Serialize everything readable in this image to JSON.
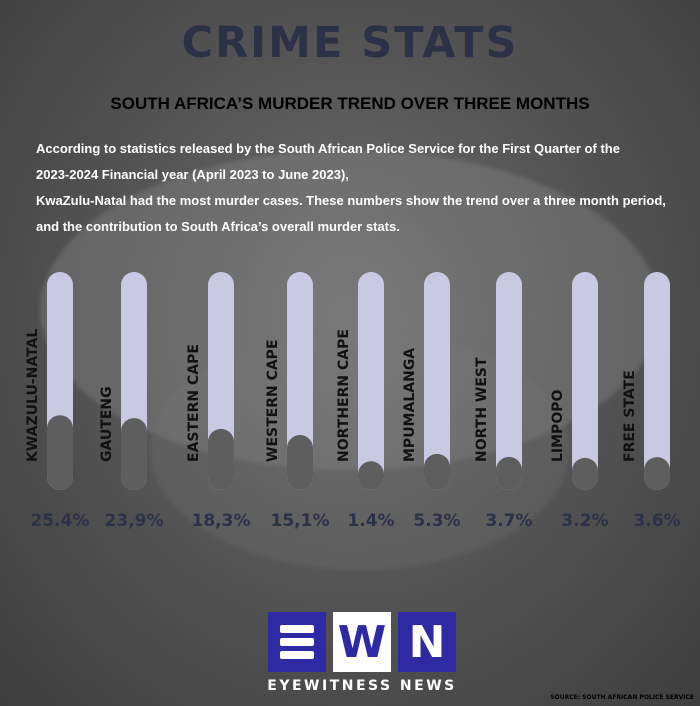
{
  "header": {
    "title": "CRIME STATS",
    "subtitle": "SOUTH AFRICA’S MURDER TREND OVER THREE MONTHS"
  },
  "intro": [
    "According to statistics released by the South African Police Service for the First  Quarter of the",
    "2023-2024 Financial year (April 2023 to June 2023),",
    "KwaZulu-Natal had the most murder cases. These numbers show the trend over a three month period,",
    "and the contribution to South Africa’s overall murder stats."
  ],
  "chart_data": {
    "type": "bar",
    "orientation": "vertical-capsule",
    "categories": [
      "KWAZULU-NATAL",
      "GAUTENG",
      "EASTERN CAPE",
      "WESTERN CAPE",
      "NORTHERN CAPE",
      "MPUMALANGA",
      "NORTH WEST",
      "LIMPOPO",
      "FREE STATE"
    ],
    "values": [
      25.4,
      23.9,
      18.3,
      15.1,
      1.4,
      5.3,
      3.7,
      3.2,
      3.6
    ],
    "value_labels": [
      "25.4%",
      "23,9%",
      "18,3%",
      "15,1%",
      "1.4%",
      "5.3%",
      "3.7%",
      "3.2%",
      "3.6%"
    ],
    "unit": "%",
    "ylim": [
      0,
      100
    ],
    "colors": {
      "track": "#c9c9e4",
      "fill": "#5e5e5e",
      "value_text": "#2b3248",
      "label_text": "#111111"
    }
  },
  "logo": {
    "letters": [
      "E",
      "W",
      "N"
    ],
    "colors": [
      "#2e2aa3",
      "#2e2aa3",
      "#ffffff"
    ],
    "brand": "EYEWITNESS NEWS"
  },
  "source": "SOURCE: SOUTH AFRICAN POLICE SERVICE"
}
